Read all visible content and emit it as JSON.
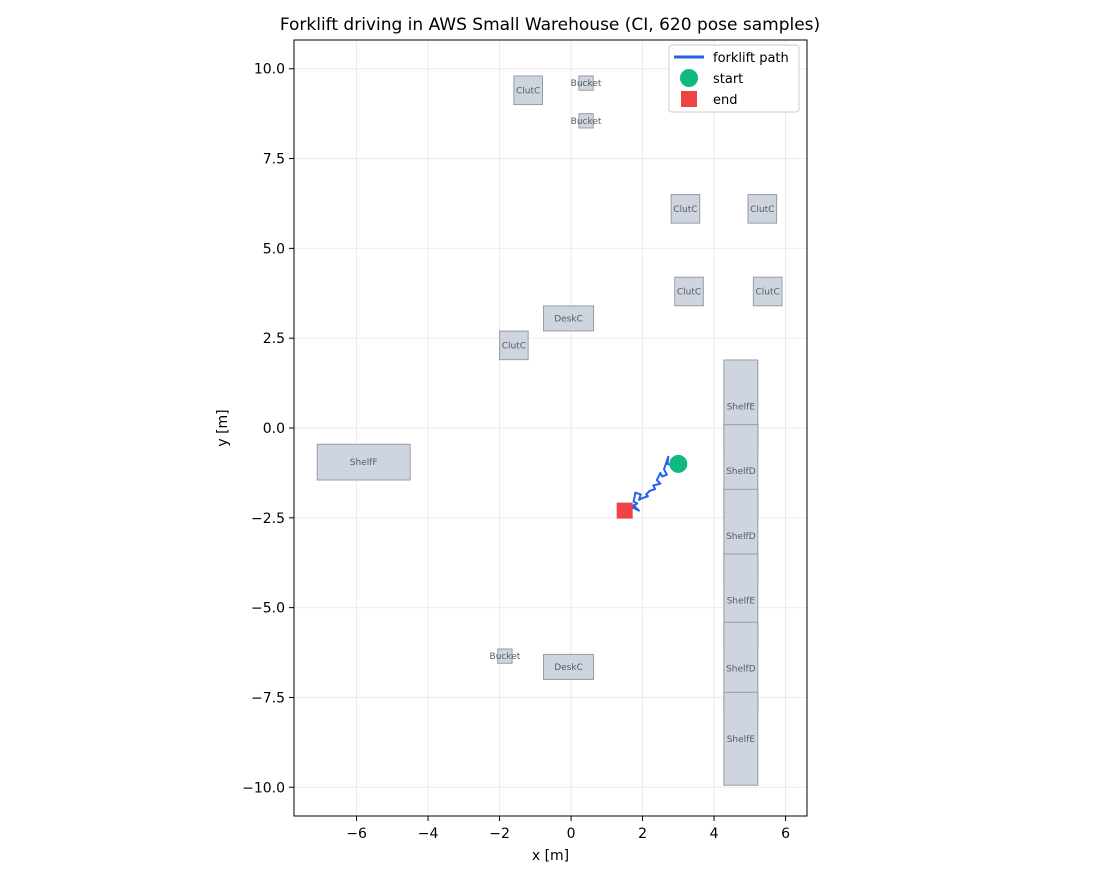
{
  "chart_data": {
    "type": "scatter",
    "title": "Forklift driving in AWS Small Warehouse (CI, 620 pose samples)",
    "xlabel": "x [m]",
    "ylabel": "y [m]",
    "xlim": [
      -7.75,
      6.6
    ],
    "ylim": [
      -10.8,
      10.8
    ],
    "x_ticks": [
      -6,
      -4,
      -2,
      0,
      2,
      4,
      6
    ],
    "x_tick_labels": [
      "−6",
      "−4",
      "−2",
      "0",
      "2",
      "4",
      "6"
    ],
    "y_ticks": [
      10.0,
      7.5,
      5.0,
      2.5,
      0.0,
      -2.5,
      -5.0,
      -7.5,
      -10.0
    ],
    "y_tick_labels": [
      "10.0",
      "7.5",
      "5.0",
      "2.5",
      "0.0",
      "−2.5",
      "−5.0",
      "−7.5",
      "−10.0"
    ],
    "grid": true,
    "aspect": "equal",
    "legend": {
      "placement": "top-right",
      "entries": [
        {
          "label": "forklift path",
          "marker": "line",
          "color": "#2563eb"
        },
        {
          "label": "start",
          "marker": "circle",
          "color": "#10b981"
        },
        {
          "label": "end",
          "marker": "square",
          "color": "#ef4444"
        }
      ]
    },
    "obstacles": [
      {
        "label": "ClutC",
        "cx": -1.2,
        "cy": 9.4,
        "w": 0.8,
        "h": 0.8
      },
      {
        "label": "Bucket",
        "cx": 0.42,
        "cy": 9.6,
        "w": 0.4,
        "h": 0.4
      },
      {
        "label": "Bucket",
        "cx": 0.42,
        "cy": 8.55,
        "w": 0.4,
        "h": 0.4
      },
      {
        "label": "ClutC",
        "cx": 3.2,
        "cy": 6.1,
        "w": 0.8,
        "h": 0.8
      },
      {
        "label": "ClutC",
        "cx": 5.35,
        "cy": 6.1,
        "w": 0.8,
        "h": 0.8
      },
      {
        "label": "ClutC",
        "cx": 3.3,
        "cy": 3.8,
        "w": 0.8,
        "h": 0.8
      },
      {
        "label": "ClutC",
        "cx": 5.5,
        "cy": 3.8,
        "w": 0.8,
        "h": 0.8
      },
      {
        "label": "DeskC",
        "cx": -0.07,
        "cy": 3.05,
        "w": 1.4,
        "h": 0.7
      },
      {
        "label": "ClutC",
        "cx": -1.6,
        "cy": 2.3,
        "w": 0.8,
        "h": 0.8
      },
      {
        "label": "ShelfE",
        "cx": 4.75,
        "cy": 0.6,
        "w": 0.95,
        "h": 2.6
      },
      {
        "label": "ShelfF",
        "cx": -5.8,
        "cy": -0.95,
        "w": 2.6,
        "h": 1.0
      },
      {
        "label": "ShelfD",
        "cx": 4.75,
        "cy": -1.2,
        "w": 0.95,
        "h": 2.6
      },
      {
        "label": "ShelfD",
        "cx": 4.75,
        "cy": -3.0,
        "w": 0.95,
        "h": 2.6
      },
      {
        "label": "ShelfE",
        "cx": 4.75,
        "cy": -4.8,
        "w": 0.95,
        "h": 2.6
      },
      {
        "label": "Bucket",
        "cx": -1.85,
        "cy": -6.35,
        "w": 0.4,
        "h": 0.4
      },
      {
        "label": "DeskC",
        "cx": -0.07,
        "cy": -6.65,
        "w": 1.4,
        "h": 0.7
      },
      {
        "label": "ShelfD",
        "cx": 4.75,
        "cy": -6.7,
        "w": 0.95,
        "h": 2.6
      },
      {
        "label": "ShelfE",
        "cx": 4.75,
        "cy": -8.65,
        "w": 0.95,
        "h": 2.6
      }
    ],
    "series": [
      {
        "name": "forklift path",
        "type": "line",
        "color": "#2563eb",
        "x": [
          3.0,
          2.85,
          2.7,
          2.72,
          2.6,
          2.68,
          2.55,
          2.5,
          2.4,
          2.5,
          2.3,
          2.35,
          2.2,
          2.1,
          2.15,
          2.0,
          1.9,
          1.95,
          1.8,
          1.75,
          1.85,
          1.7,
          1.9,
          1.75,
          1.7,
          1.6,
          1.55,
          1.5
        ],
        "y": [
          -1.0,
          -1.05,
          -1.0,
          -0.8,
          -1.15,
          -1.3,
          -1.35,
          -1.25,
          -1.45,
          -1.55,
          -1.6,
          -1.7,
          -1.75,
          -1.85,
          -1.9,
          -1.95,
          -2.0,
          -1.85,
          -1.8,
          -2.05,
          -2.1,
          -2.2,
          -2.3,
          -2.15,
          -2.25,
          -2.3,
          -2.35,
          -2.3
        ]
      }
    ],
    "start": {
      "x": 3.0,
      "y": -1.0
    },
    "end": {
      "x": 1.5,
      "y": -2.3
    }
  }
}
